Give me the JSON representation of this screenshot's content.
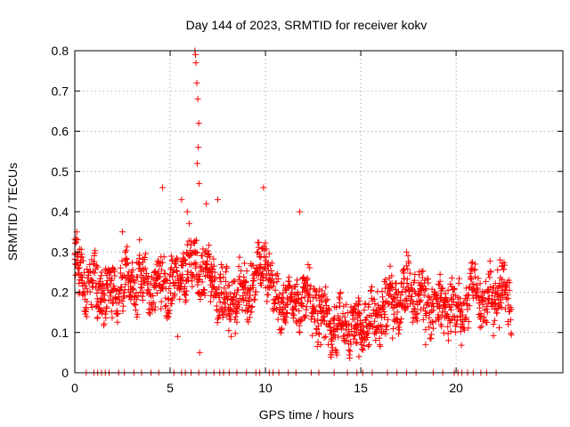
{
  "chart_data": {
    "type": "scatter",
    "title": "Day 144 of 2023, SRMTID for receiver kokv",
    "xlabel": "GPS time / hours",
    "ylabel": "SRMTID / TECUs",
    "xlim": [
      0,
      25.6
    ],
    "ylim": [
      0,
      0.8
    ],
    "xticks": [
      0,
      5,
      10,
      15,
      20
    ],
    "xtick_labels": [
      "0",
      "5",
      "10",
      "15",
      "20"
    ],
    "yticks": [
      0,
      0.1,
      0.2,
      0.3,
      0.4,
      0.5,
      0.6,
      0.7,
      0.8
    ],
    "ytick_labels": [
      "0",
      "0.1",
      "0.2",
      "0.3",
      "0.4",
      "0.5",
      "0.6",
      "0.7",
      "0.8"
    ],
    "grid": true,
    "marker": "plus",
    "color": "#ff0000",
    "series": [
      {
        "name": "SRMTID",
        "trend": [
          [
            0.0,
            0.27
          ],
          [
            0.5,
            0.23
          ],
          [
            1.0,
            0.22
          ],
          [
            1.5,
            0.2
          ],
          [
            2.0,
            0.19
          ],
          [
            2.5,
            0.23
          ],
          [
            3.0,
            0.22
          ],
          [
            3.5,
            0.23
          ],
          [
            4.0,
            0.21
          ],
          [
            4.5,
            0.23
          ],
          [
            5.0,
            0.22
          ],
          [
            5.5,
            0.24
          ],
          [
            6.0,
            0.28
          ],
          [
            6.5,
            0.25
          ],
          [
            7.0,
            0.24
          ],
          [
            7.5,
            0.21
          ],
          [
            8.0,
            0.17
          ],
          [
            8.5,
            0.19
          ],
          [
            9.0,
            0.19
          ],
          [
            9.5,
            0.23
          ],
          [
            10.0,
            0.28
          ],
          [
            10.5,
            0.18
          ],
          [
            11.0,
            0.17
          ],
          [
            11.5,
            0.18
          ],
          [
            12.0,
            0.19
          ],
          [
            12.5,
            0.17
          ],
          [
            13.0,
            0.14
          ],
          [
            13.5,
            0.12
          ],
          [
            14.0,
            0.12
          ],
          [
            14.5,
            0.13
          ],
          [
            15.0,
            0.11
          ],
          [
            15.5,
            0.13
          ],
          [
            16.0,
            0.15
          ],
          [
            16.5,
            0.17
          ],
          [
            17.0,
            0.17
          ],
          [
            17.5,
            0.21
          ],
          [
            18.0,
            0.18
          ],
          [
            18.5,
            0.17
          ],
          [
            19.0,
            0.16
          ],
          [
            19.5,
            0.17
          ],
          [
            20.0,
            0.15
          ],
          [
            20.5,
            0.16
          ],
          [
            21.0,
            0.22
          ],
          [
            21.5,
            0.17
          ],
          [
            22.0,
            0.19
          ],
          [
            22.5,
            0.2
          ],
          [
            22.9,
            0.16
          ]
        ],
        "spikes": [
          [
            0.0,
            0.33
          ],
          [
            2.5,
            0.35
          ],
          [
            3.4,
            0.33
          ],
          [
            4.6,
            0.46
          ],
          [
            5.6,
            0.43
          ],
          [
            5.9,
            0.4
          ],
          [
            6.3,
            0.8
          ],
          [
            6.33,
            0.79
          ],
          [
            6.35,
            0.77
          ],
          [
            6.4,
            0.72
          ],
          [
            6.45,
            0.68
          ],
          [
            6.5,
            0.62
          ],
          [
            6.48,
            0.56
          ],
          [
            6.42,
            0.52
          ],
          [
            6.52,
            0.47
          ],
          [
            6.9,
            0.42
          ],
          [
            7.5,
            0.43
          ],
          [
            9.9,
            0.46
          ],
          [
            11.8,
            0.4
          ],
          [
            17.4,
            0.3
          ],
          [
            21.0,
            0.27
          ],
          [
            22.3,
            0.28
          ],
          [
            6.55,
            0.05
          ],
          [
            13.5,
            0.05
          ],
          [
            14.9,
            0.04
          ],
          [
            5.4,
            0.09
          ],
          [
            8.2,
            0.09
          ],
          [
            12.9,
            0.07
          ],
          [
            18.4,
            0.07
          ],
          [
            19.6,
            0.08
          ]
        ],
        "zero_x": [
          0.6,
          1.0,
          1.2,
          1.4,
          1.6,
          1.8,
          2.3,
          2.6,
          3.1,
          3.5,
          4.0,
          4.4,
          5.2,
          5.6,
          5.8,
          6.1,
          6.5,
          6.9,
          7.3,
          7.6,
          7.8,
          8.1,
          8.5,
          9.0,
          9.5,
          9.7,
          10.2,
          10.4,
          10.7,
          11.2,
          11.6,
          12.4,
          12.8,
          13.6,
          14.3,
          14.8,
          15.1,
          15.6,
          16.4,
          16.9,
          17.4,
          17.9,
          18.8,
          19.3,
          19.9,
          20.1,
          20.3,
          20.6,
          20.9,
          21.3,
          21.6,
          22.1
        ]
      }
    ]
  }
}
